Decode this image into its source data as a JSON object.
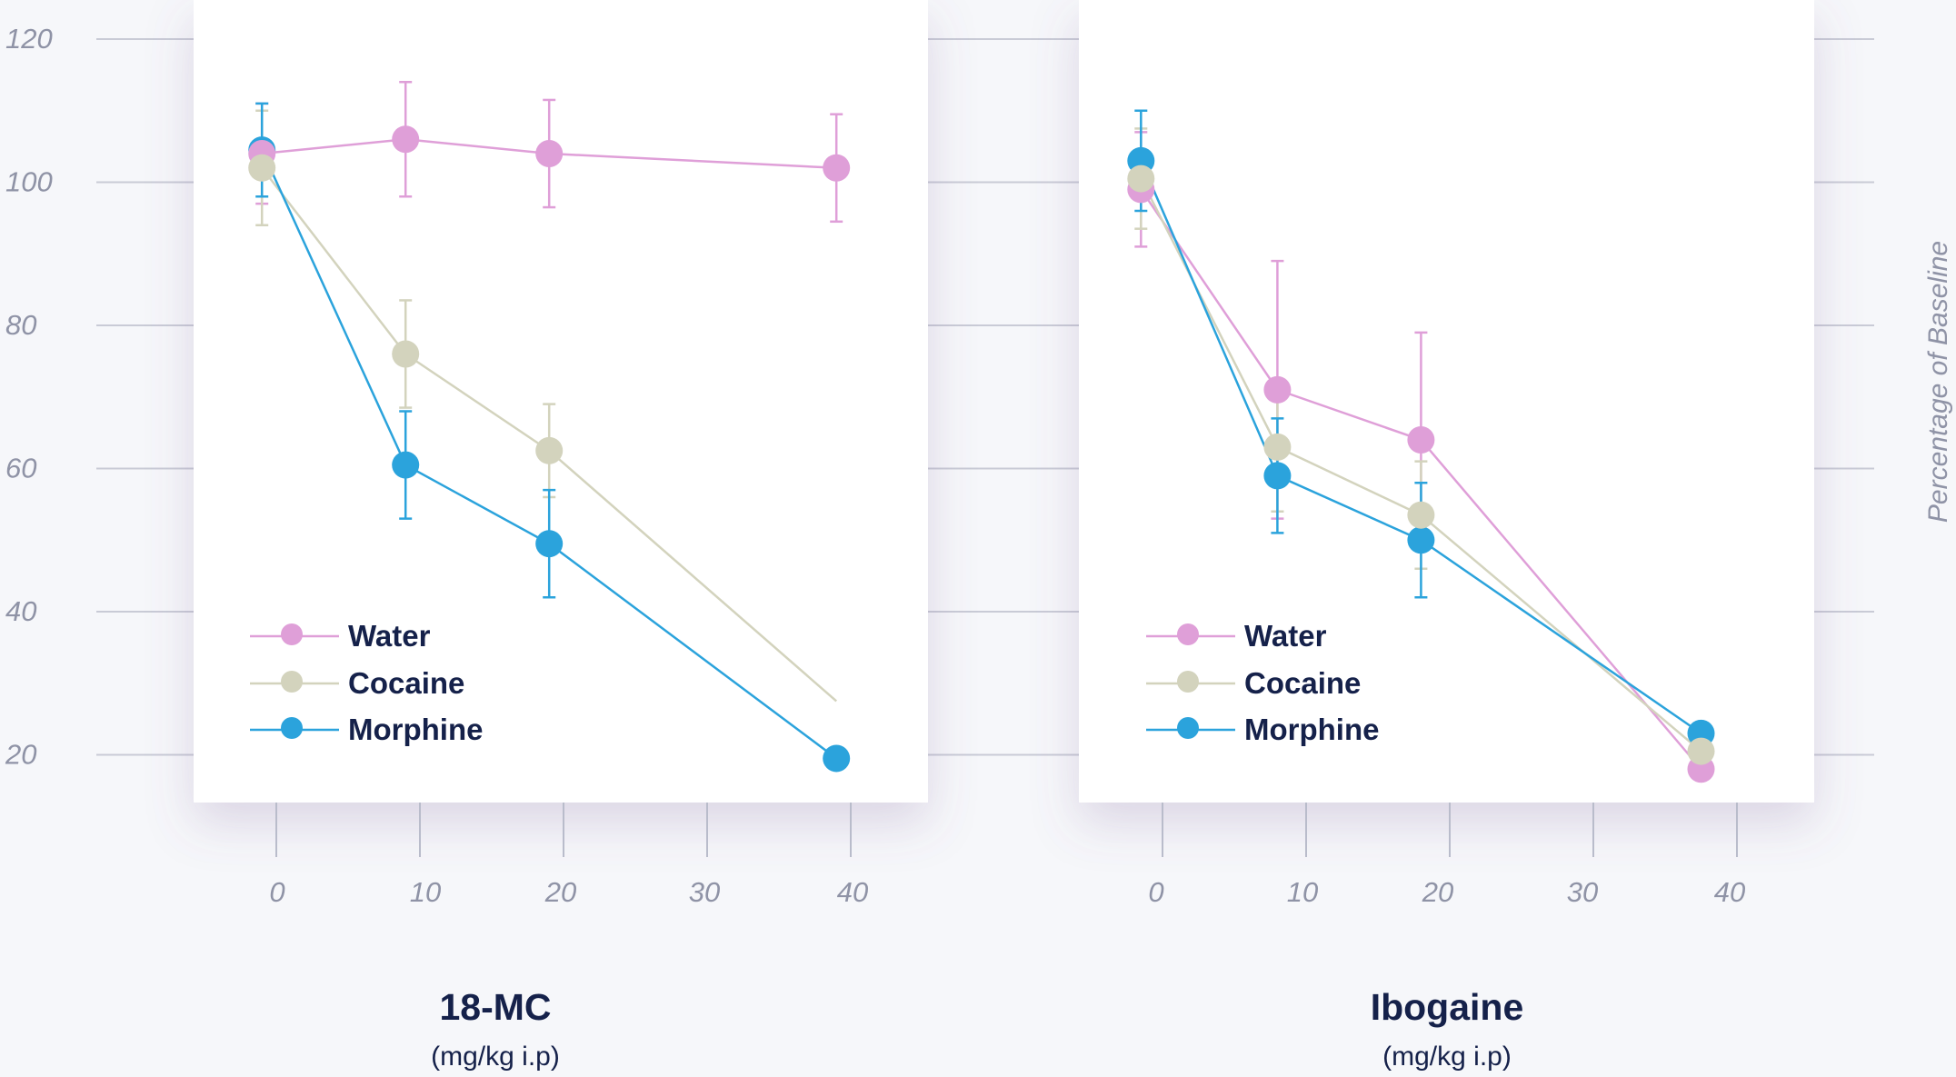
{
  "chart_data": {
    "type": "line",
    "ylabel": "Percentage of Baseline",
    "y_ticks": [
      "120",
      "100",
      "80",
      "60",
      "40",
      "20"
    ],
    "ylim": [
      10,
      125
    ],
    "x_ticks": [
      "0",
      "10",
      "20",
      "30",
      "40"
    ],
    "xlim": [
      -6,
      42
    ],
    "grid": true,
    "legend_position": "bottom-left",
    "colors": {
      "Water": "#df9fd8",
      "Cocaine": "#d3d3bd",
      "Morphine": "#2ba3dc"
    },
    "panels": [
      {
        "title": "18-MC",
        "subtitle": "(mg/kg i.p)",
        "series": [
          {
            "name": "Water",
            "x": [
              -1,
              9,
              19,
              39
            ],
            "y": [
              104,
              106,
              104,
              102
            ],
            "err": [
              7,
              8,
              7.5,
              7.5
            ]
          },
          {
            "name": "Cocaine",
            "x": [
              -1,
              9,
              19,
              39
            ],
            "y": [
              102,
              76,
              62.5,
              27.5
            ],
            "err": [
              8,
              7.5,
              6.5,
              null
            ]
          },
          {
            "name": "Morphine",
            "x": [
              -1,
              9,
              19,
              39
            ],
            "y": [
              104.5,
              60.5,
              49.5,
              19.5
            ],
            "err": [
              6.5,
              7.5,
              7.5,
              null
            ]
          }
        ]
      },
      {
        "title": "Ibogaine",
        "subtitle": "(mg/kg i.p)",
        "series": [
          {
            "name": "Water",
            "x": [
              -1.5,
              8,
              18,
              37.5
            ],
            "y": [
              99,
              71,
              64,
              18
            ],
            "err": [
              8,
              18,
              15,
              null
            ]
          },
          {
            "name": "Cocaine",
            "x": [
              -1.5,
              8,
              18,
              37.5
            ],
            "y": [
              100.5,
              63,
              53.5,
              20.5
            ],
            "err": [
              7,
              9,
              7.5,
              null
            ]
          },
          {
            "name": "Morphine",
            "x": [
              -1.5,
              8,
              18,
              37.5
            ],
            "y": [
              103,
              59,
              50,
              23
            ],
            "err": [
              7,
              8,
              8,
              null
            ]
          }
        ]
      }
    ]
  }
}
